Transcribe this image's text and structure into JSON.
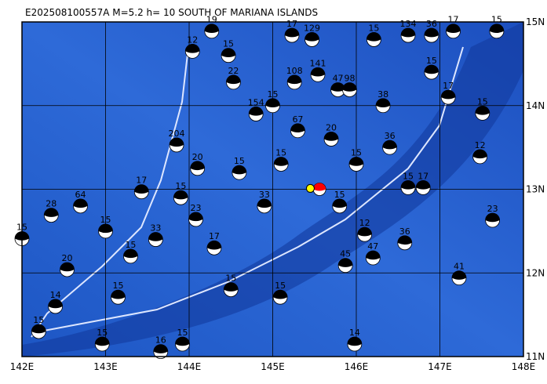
{
  "map": {
    "title": "E202508100557A M=5.2 h= 10 SOUTH OF MARIANA ISLANDS",
    "xlim": [
      142,
      148
    ],
    "ylim": [
      11,
      15
    ],
    "xticks": [
      {
        "value": 142,
        "label": "142E"
      },
      {
        "value": 143,
        "label": "143E"
      },
      {
        "value": 144,
        "label": "144E"
      },
      {
        "value": 145,
        "label": "145E"
      },
      {
        "value": 146,
        "label": "146E"
      },
      {
        "value": 147,
        "label": "147E"
      },
      {
        "value": 148,
        "label": "148E"
      }
    ],
    "yticks": [
      {
        "value": 11,
        "label": "11N"
      },
      {
        "value": 12,
        "label": "12N"
      },
      {
        "value": 13,
        "label": "13N"
      },
      {
        "value": 14,
        "label": "14N"
      },
      {
        "value": 15,
        "label": "15N"
      }
    ],
    "main_event": {
      "lon": 145.56,
      "lat": 13.0,
      "color": "#ff0000"
    },
    "epicenter": {
      "lon": 145.45,
      "lat": 13.01,
      "color": "#ffff00"
    },
    "events": [
      {
        "lon": 147.68,
        "lat": 14.89,
        "depth": 15
      },
      {
        "lon": 147.16,
        "lat": 14.89,
        "depth": 17
      },
      {
        "lon": 146.9,
        "lat": 14.84,
        "depth": 36
      },
      {
        "lon": 146.62,
        "lat": 14.84,
        "depth": 134
      },
      {
        "lon": 146.21,
        "lat": 14.79,
        "depth": 15
      },
      {
        "lon": 145.23,
        "lat": 14.84,
        "depth": 17
      },
      {
        "lon": 145.47,
        "lat": 14.79,
        "depth": 129
      },
      {
        "lon": 145.54,
        "lat": 14.37,
        "depth": 141
      },
      {
        "lon": 145.26,
        "lat": 14.28,
        "depth": 108
      },
      {
        "lon": 145.78,
        "lat": 14.19,
        "depth": 47
      },
      {
        "lon": 145.92,
        "lat": 14.19,
        "depth": 98
      },
      {
        "lon": 146.32,
        "lat": 14.0,
        "depth": 38
      },
      {
        "lon": 147.51,
        "lat": 13.91,
        "depth": 15
      },
      {
        "lon": 147.48,
        "lat": 13.39,
        "depth": 12
      },
      {
        "lon": 147.63,
        "lat": 12.63,
        "depth": 23
      },
      {
        "lon": 146.58,
        "lat": 12.36,
        "depth": 36
      },
      {
        "lon": 147.23,
        "lat": 11.94,
        "depth": 41
      },
      {
        "lon": 146.2,
        "lat": 12.18,
        "depth": 47
      },
      {
        "lon": 145.87,
        "lat": 12.09,
        "depth": 45
      },
      {
        "lon": 145.98,
        "lat": 11.15,
        "depth": 14
      },
      {
        "lon": 145.09,
        "lat": 11.71,
        "depth": 15
      },
      {
        "lon": 143.92,
        "lat": 11.15,
        "depth": 15
      },
      {
        "lon": 143.66,
        "lat": 11.06,
        "depth": 16
      },
      {
        "lon": 142.0,
        "lat": 12.41,
        "depth": 15
      },
      {
        "lon": 142.35,
        "lat": 12.69,
        "depth": 28
      },
      {
        "lon": 143.43,
        "lat": 12.97,
        "depth": 17
      },
      {
        "lon": 143.85,
        "lat": 13.53,
        "depth": 204
      },
      {
        "lon": 144.53,
        "lat": 14.28,
        "depth": 22
      },
      {
        "lon": 144.47,
        "lat": 14.6,
        "depth": 15
      },
      {
        "lon": 144.27,
        "lat": 14.89,
        "depth": 19
      },
      {
        "lon": 144.04,
        "lat": 14.65,
        "depth": 12
      },
      {
        "lon": 146.62,
        "lat": 13.02,
        "depth": 15
      },
      {
        "lon": 146.8,
        "lat": 13.02,
        "depth": 17
      },
      {
        "lon": 143.15,
        "lat": 11.71,
        "depth": 15
      },
      {
        "lon": 142.54,
        "lat": 12.04,
        "depth": 20
      },
      {
        "lon": 142.96,
        "lat": 11.15,
        "depth": 15
      },
      {
        "lon": 146.1,
        "lat": 12.46,
        "depth": 12
      },
      {
        "lon": 144.08,
        "lat": 12.64,
        "depth": 23
      },
      {
        "lon": 143.3,
        "lat": 12.2,
        "depth": 15
      },
      {
        "lon": 142.7,
        "lat": 12.8,
        "depth": 64
      },
      {
        "lon": 143.0,
        "lat": 12.5,
        "depth": 15
      },
      {
        "lon": 143.6,
        "lat": 12.4,
        "depth": 33
      },
      {
        "lon": 143.9,
        "lat": 12.9,
        "depth": 15
      },
      {
        "lon": 144.3,
        "lat": 12.3,
        "depth": 17
      },
      {
        "lon": 144.6,
        "lat": 13.2,
        "depth": 15
      },
      {
        "lon": 144.9,
        "lat": 12.8,
        "depth": 33
      },
      {
        "lon": 145.1,
        "lat": 13.3,
        "depth": 15
      },
      {
        "lon": 145.3,
        "lat": 13.7,
        "depth": 67
      },
      {
        "lon": 144.8,
        "lat": 13.9,
        "depth": 154
      },
      {
        "lon": 145.0,
        "lat": 14.0,
        "depth": 15
      },
      {
        "lon": 145.7,
        "lat": 13.6,
        "depth": 20
      },
      {
        "lon": 146.0,
        "lat": 13.3,
        "depth": 15
      },
      {
        "lon": 146.4,
        "lat": 13.5,
        "depth": 36
      },
      {
        "lon": 146.9,
        "lat": 14.4,
        "depth": 15
      },
      {
        "lon": 147.1,
        "lat": 14.1,
        "depth": 17
      },
      {
        "lon": 145.8,
        "lat": 12.8,
        "depth": 15
      },
      {
        "lon": 144.5,
        "lat": 11.8,
        "depth": 15
      },
      {
        "lon": 142.2,
        "lat": 11.3,
        "depth": 15
      },
      {
        "lon": 142.4,
        "lat": 11.6,
        "depth": 14
      },
      {
        "lon": 144.1,
        "lat": 13.25,
        "depth": 20
      }
    ]
  }
}
